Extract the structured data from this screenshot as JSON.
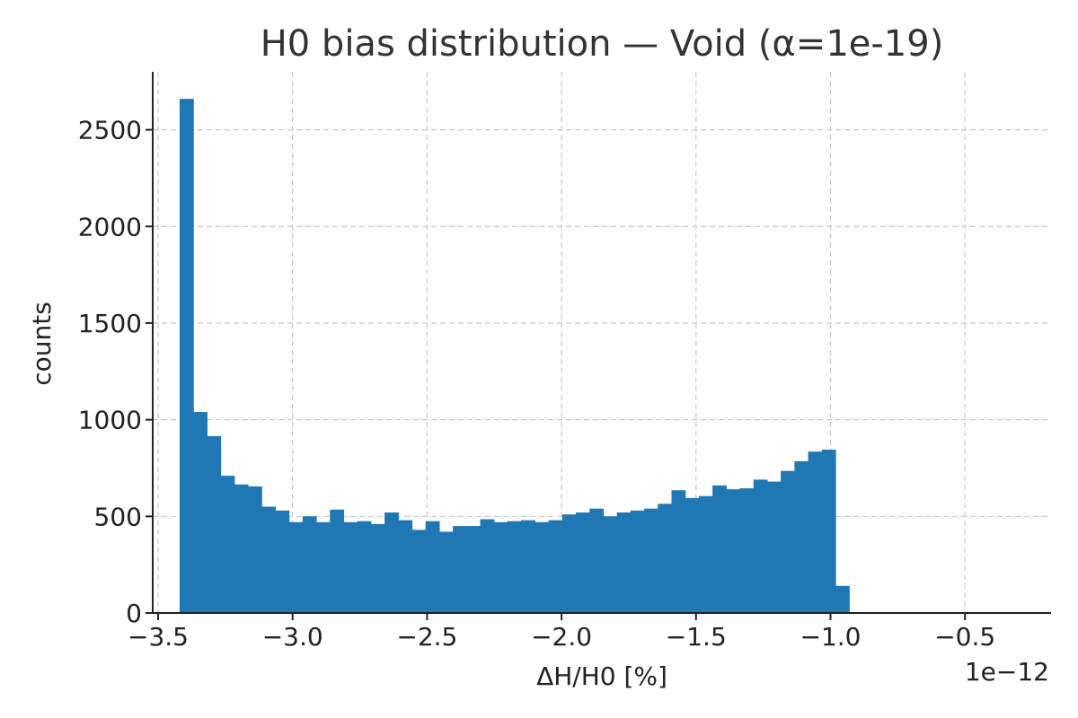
{
  "chart_data": {
    "type": "bar",
    "title": "H0 bias distribution — Void (α=1e-19)",
    "xlabel": "ΔH/H0 [%]",
    "ylabel": "counts",
    "x_offset_label": "1e−12",
    "xlim": [
      -3.52,
      -0.18
    ],
    "ylim": [
      0,
      2800
    ],
    "grid": true,
    "color": "#1f77b4",
    "x_ticks": [
      {
        "value": -3.5,
        "label": "−3.5"
      },
      {
        "value": -3.0,
        "label": "−3.0"
      },
      {
        "value": -2.5,
        "label": "−2.5"
      },
      {
        "value": -2.0,
        "label": "−2.0"
      },
      {
        "value": -1.5,
        "label": "−1.5"
      },
      {
        "value": -1.0,
        "label": "−1.0"
      },
      {
        "value": -0.5,
        "label": "−0.5"
      }
    ],
    "y_ticks": [
      {
        "value": 0,
        "label": "0"
      },
      {
        "value": 500,
        "label": "500"
      },
      {
        "value": 1000,
        "label": "1000"
      },
      {
        "value": 1500,
        "label": "1500"
      },
      {
        "value": 2000,
        "label": "2000"
      },
      {
        "value": 2500,
        "label": "2500"
      }
    ],
    "bin_start": -3.42,
    "bin_width": 0.0508,
    "values": [
      2660,
      1040,
      915,
      710,
      665,
      655,
      550,
      530,
      470,
      500,
      470,
      535,
      470,
      475,
      460,
      520,
      480,
      430,
      475,
      420,
      450,
      450,
      485,
      470,
      475,
      480,
      470,
      480,
      510,
      520,
      540,
      500,
      520,
      530,
      540,
      565,
      635,
      595,
      605,
      660,
      640,
      645,
      690,
      680,
      735,
      785,
      835,
      845,
      140
    ]
  }
}
